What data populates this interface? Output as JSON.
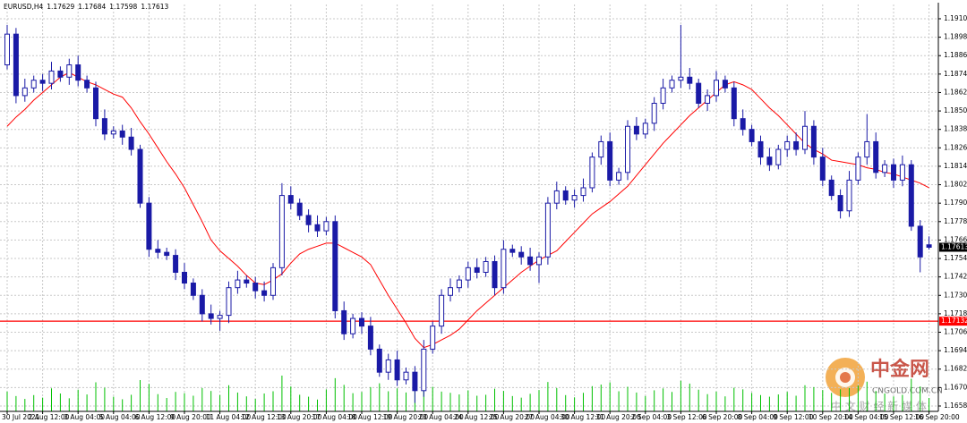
{
  "chart_data": {
    "type": "candlestick",
    "symbol": "EURUSD,H4",
    "ylim": [
      1.16545,
      1.19193
    ],
    "yticks": [
      {
        "value": 1.191,
        "label": "1.19100"
      },
      {
        "value": 1.1898,
        "label": "1.18980"
      },
      {
        "value": 1.1886,
        "label": "1.18860"
      },
      {
        "value": 1.1874,
        "label": "1.18740"
      },
      {
        "value": 1.1862,
        "label": "1.18620"
      },
      {
        "value": 1.185,
        "label": "1.18500"
      },
      {
        "value": 1.1838,
        "label": "1.18380"
      },
      {
        "value": 1.1826,
        "label": "1.18260"
      },
      {
        "value": 1.1814,
        "label": "1.18140"
      },
      {
        "value": 1.1802,
        "label": "1.18020"
      },
      {
        "value": 1.179,
        "label": "1.17900"
      },
      {
        "value": 1.1778,
        "label": "1.17780"
      },
      {
        "value": 1.1766,
        "label": "1.17660"
      },
      {
        "value": 1.1754,
        "label": "1.17540"
      },
      {
        "value": 1.1742,
        "label": "1.17420"
      },
      {
        "value": 1.173,
        "label": "1.17300"
      },
      {
        "value": 1.1718,
        "label": "1.17180"
      },
      {
        "value": 1.1706,
        "label": "1.17060"
      },
      {
        "value": 1.1694,
        "label": "1.16940"
      },
      {
        "value": 1.1682,
        "label": "1.16820"
      },
      {
        "value": 1.167,
        "label": "1.16700"
      },
      {
        "value": 1.1658,
        "label": "1.16580"
      }
    ],
    "grid": true,
    "candle_color": "#1a1aa6",
    "categories": [
      "30 Jul 2021",
      null,
      null,
      null,
      "2 Aug 12:00",
      null,
      null,
      null,
      "3 Aug 04:00",
      null,
      null,
      null,
      "5 Aug 04:00",
      null,
      null,
      null,
      "6 Aug 12:00",
      null,
      null,
      null,
      "9 Aug 20:00",
      null,
      null,
      null,
      "11 Aug 04:00",
      null,
      null,
      null,
      "12 Aug 12:00",
      null,
      null,
      null,
      "13 Aug 20:00",
      null,
      null,
      null,
      "17 Aug 04:00",
      null,
      null,
      null,
      "18 Aug 12:00",
      null,
      null,
      null,
      "19 Aug 20:00",
      null,
      null,
      null,
      "23 Aug 04:00",
      null,
      null,
      null,
      "24 Aug 12:00",
      null,
      null,
      null,
      "25 Aug 20:00",
      null,
      null,
      null,
      "27 Aug 04:00",
      null,
      null,
      null,
      "30 Aug 12:00",
      null,
      null,
      null,
      "31 Aug 20:00",
      null,
      null,
      null,
      "2 Sep 04:00",
      null,
      null,
      null,
      "3 Sep 12:00",
      null,
      null,
      null,
      "6 Sep 20:00",
      null,
      null,
      null,
      "8 Sep 04:00",
      null,
      null,
      null,
      "9 Sep 12:00",
      null,
      null,
      null,
      "10 Sep 20:00",
      null,
      null,
      null,
      "14 Sep 04:00",
      null,
      null,
      null,
      "15 Sep 12:00",
      null,
      null,
      null,
      "16 Sep 20:00"
    ],
    "open": [
      1.188,
      1.19,
      1.186,
      1.1865,
      1.187,
      1.1868,
      1.1876,
      1.1872,
      1.188,
      1.187,
      1.1865,
      1.1845,
      1.1835,
      1.1837,
      1.1833,
      1.1825,
      1.179,
      1.176,
      1.1758,
      1.1756,
      1.1745,
      1.1738,
      1.173,
      1.1718,
      1.1715,
      1.1717,
      1.1735,
      1.174,
      1.1738,
      1.1733,
      1.173,
      1.1748,
      1.1795,
      1.179,
      1.1782,
      1.1776,
      1.1772,
      1.1778,
      1.172,
      1.1705,
      1.1715,
      1.171,
      1.1695,
      1.168,
      1.1688,
      1.1675,
      1.168,
      1.1668,
      1.1695,
      1.171,
      1.173,
      1.1735,
      1.174,
      1.1748,
      1.1745,
      1.1752,
      1.1735,
      1.176,
      1.1758,
      1.1755,
      1.175,
      1.1755,
      1.179,
      1.1798,
      1.1792,
      1.1795,
      1.18,
      1.182,
      1.183,
      1.1805,
      1.181,
      1.184,
      1.1835,
      1.1842,
      1.1855,
      1.1865,
      1.187,
      1.1872,
      1.1868,
      1.1855,
      1.186,
      1.187,
      1.1865,
      1.1845,
      1.1838,
      1.183,
      1.182,
      1.1815,
      1.1825,
      1.183,
      1.1825,
      1.184,
      1.182,
      1.1805,
      1.1795,
      1.1785,
      1.1805,
      1.182,
      1.183,
      1.181,
      1.1815,
      1.1805,
      1.1815,
      1.1775,
      1.17629
    ],
    "high": [
      1.1906,
      1.1904,
      1.1871,
      1.1873,
      1.1874,
      1.1882,
      1.1879,
      1.1884,
      1.1886,
      1.1873,
      1.1869,
      1.1851,
      1.184,
      1.1841,
      1.1839,
      1.1828,
      1.1794,
      1.1766,
      1.1761,
      1.176,
      1.1751,
      1.1741,
      1.1734,
      1.1724,
      1.172,
      1.1739,
      1.1746,
      1.1743,
      1.1742,
      1.1739,
      1.1751,
      1.1803,
      1.1801,
      1.1793,
      1.1786,
      1.1782,
      1.1781,
      1.1782,
      1.1726,
      1.1718,
      1.1719,
      1.1716,
      1.1698,
      1.1692,
      1.1694,
      1.1683,
      1.1684,
      1.1701,
      1.1713,
      1.1734,
      1.1741,
      1.1743,
      1.1752,
      1.1754,
      1.1755,
      1.1756,
      1.1766,
      1.1763,
      1.1762,
      1.1761,
      1.1758,
      1.1794,
      1.1804,
      1.1801,
      1.1799,
      1.1806,
      1.1823,
      1.1834,
      1.1836,
      1.1813,
      1.1844,
      1.1846,
      1.1845,
      1.1859,
      1.1871,
      1.1873,
      1.1906,
      1.1878,
      1.1871,
      1.1864,
      1.1876,
      1.1873,
      1.1869,
      1.1851,
      1.1841,
      1.1834,
      1.1826,
      1.1828,
      1.1834,
      1.1836,
      1.185,
      1.1844,
      1.1826,
      1.1808,
      1.1799,
      1.1811,
      1.1823,
      1.1848,
      1.1836,
      1.1818,
      1.1819,
      1.1821,
      1.1818,
      1.1779,
      1.17684
    ],
    "low": [
      1.1877,
      1.1855,
      1.1856,
      1.1862,
      1.1863,
      1.1864,
      1.1869,
      1.1867,
      1.1866,
      1.1862,
      1.184,
      1.1831,
      1.1832,
      1.1828,
      1.1821,
      1.1787,
      1.1755,
      1.1754,
      1.1753,
      1.174,
      1.1734,
      1.1727,
      1.1713,
      1.1711,
      1.1707,
      1.1712,
      1.1731,
      1.1735,
      1.1728,
      1.1726,
      1.1727,
      1.1743,
      1.1786,
      1.1779,
      1.1771,
      1.1768,
      1.1769,
      1.1715,
      1.1701,
      1.1702,
      1.1705,
      1.1691,
      1.1677,
      1.1675,
      1.1671,
      1.1672,
      1.166,
      1.1664,
      1.1692,
      1.1705,
      1.1726,
      1.1732,
      1.1735,
      1.1741,
      1.1742,
      1.173,
      1.1731,
      1.1755,
      1.175,
      1.1746,
      1.1738,
      1.175,
      1.1786,
      1.1789,
      1.1787,
      1.1791,
      1.1797,
      1.1815,
      1.1801,
      1.1802,
      1.1805,
      1.1831,
      1.1832,
      1.1837,
      1.1851,
      1.1862,
      1.1865,
      1.1864,
      1.1852,
      1.185,
      1.1856,
      1.1862,
      1.184,
      1.1834,
      1.1827,
      1.1815,
      1.1811,
      1.1812,
      1.182,
      1.1821,
      1.1822,
      1.1815,
      1.1801,
      1.1792,
      1.178,
      1.1781,
      1.1802,
      1.1815,
      1.1806,
      1.1807,
      1.18,
      1.1801,
      1.1772,
      1.1745,
      1.17598
    ],
    "close": [
      1.19,
      1.186,
      1.1865,
      1.187,
      1.1868,
      1.1876,
      1.1872,
      1.188,
      1.187,
      1.1865,
      1.1845,
      1.1835,
      1.1837,
      1.1833,
      1.1825,
      1.179,
      1.176,
      1.1758,
      1.1756,
      1.1745,
      1.1738,
      1.173,
      1.1718,
      1.1715,
      1.1717,
      1.1735,
      1.174,
      1.1738,
      1.1733,
      1.173,
      1.1748,
      1.1795,
      1.179,
      1.1782,
      1.1776,
      1.1772,
      1.1778,
      1.172,
      1.1705,
      1.1715,
      1.171,
      1.1695,
      1.168,
      1.1688,
      1.1675,
      1.168,
      1.1668,
      1.1695,
      1.171,
      1.173,
      1.1735,
      1.174,
      1.1748,
      1.1745,
      1.1752,
      1.1735,
      1.176,
      1.1758,
      1.1755,
      1.175,
      1.1755,
      1.179,
      1.1798,
      1.1792,
      1.1795,
      1.18,
      1.182,
      1.183,
      1.1805,
      1.181,
      1.184,
      1.1835,
      1.1842,
      1.1855,
      1.1865,
      1.187,
      1.1872,
      1.1868,
      1.1855,
      1.186,
      1.187,
      1.1865,
      1.1845,
      1.1838,
      1.183,
      1.182,
      1.1815,
      1.1825,
      1.183,
      1.1825,
      1.184,
      1.182,
      1.1805,
      1.1795,
      1.1785,
      1.1805,
      1.182,
      1.183,
      1.181,
      1.1815,
      1.1805,
      1.1815,
      1.1775,
      1.1755,
      1.17613
    ],
    "ma_color": "#ff0000",
    "ma_values": [
      1.184,
      1.1846,
      1.1851,
      1.1857,
      1.1862,
      1.1867,
      1.1872,
      1.1875,
      1.1872,
      1.1869,
      1.1867,
      1.1864,
      1.1861,
      1.1859,
      1.1852,
      1.1843,
      1.1835,
      1.1826,
      1.1817,
      1.1809,
      1.18,
      1.1789,
      1.1778,
      1.1766,
      1.1759,
      1.1754,
      1.1749,
      1.1743,
      1.1738,
      1.1737,
      1.174,
      1.1744,
      1.1751,
      1.1757,
      1.176,
      1.1762,
      1.1764,
      1.1764,
      1.1761,
      1.1758,
      1.1755,
      1.175,
      1.174,
      1.173,
      1.1721,
      1.1712,
      1.1702,
      1.1696,
      1.1698,
      1.1701,
      1.1704,
      1.1708,
      1.1714,
      1.172,
      1.1725,
      1.173,
      1.1735,
      1.174,
      1.1745,
      1.1749,
      1.1753,
      1.1756,
      1.1759,
      1.1765,
      1.1771,
      1.1777,
      1.1783,
      1.1787,
      1.1791,
      1.1796,
      1.1801,
      1.1808,
      1.1815,
      1.1822,
      1.1829,
      1.1835,
      1.1841,
      1.1847,
      1.1852,
      1.1857,
      1.1862,
      1.1867,
      1.1869,
      1.1867,
      1.1864,
      1.1858,
      1.1852,
      1.1847,
      1.1841,
      1.1835,
      1.1829,
      1.1825,
      1.1822,
      1.1818,
      1.1817,
      1.1816,
      1.1815,
      1.1813,
      1.1812,
      1.181,
      1.1809,
      1.1807,
      1.1805,
      1.1803,
      1.18
    ],
    "volume_color": "#00c000",
    "volumes": [
      6200,
      4800,
      3900,
      5100,
      4300,
      7200,
      5600,
      4100,
      6800,
      5300,
      9100,
      7400,
      4600,
      3800,
      5200,
      9800,
      8600,
      5400,
      4200,
      6100,
      5700,
      4900,
      7300,
      6400,
      5100,
      8200,
      5900,
      4700,
      3900,
      5600,
      6300,
      11200,
      7800,
      5200,
      4600,
      3700,
      6900,
      10400,
      8300,
      5700,
      6100,
      7600,
      8800,
      6300,
      7200,
      5900,
      9400,
      10800,
      7700,
      6200,
      5800,
      5300,
      6600,
      4900,
      5200,
      7100,
      6400,
      4800,
      4300,
      5500,
      6700,
      9200,
      7300,
      5100,
      4400,
      5800,
      7900,
      8400,
      9100,
      6300,
      7700,
      5900,
      4800,
      6600,
      7200,
      6100,
      9600,
      8700,
      6800,
      5400,
      6200,
      4700,
      7400,
      6900,
      5800,
      5100,
      4600,
      5300,
      6100,
      4900,
      8200,
      7600,
      6700,
      5800,
      6900,
      7300,
      8100,
      9300,
      6400,
      5600,
      4700,
      5200,
      10200,
      7800,
      4200
    ],
    "hline": {
      "value": 1.17132,
      "label": "1.17132",
      "color": "#ff0000"
    },
    "last_price": {
      "value": 1.17613,
      "label": "1.17613"
    },
    "watermark": {
      "name": "中金网",
      "domain": "CNGOLD.COM.CN",
      "slogan": "中 文 财 经 新 媒 体"
    }
  }
}
